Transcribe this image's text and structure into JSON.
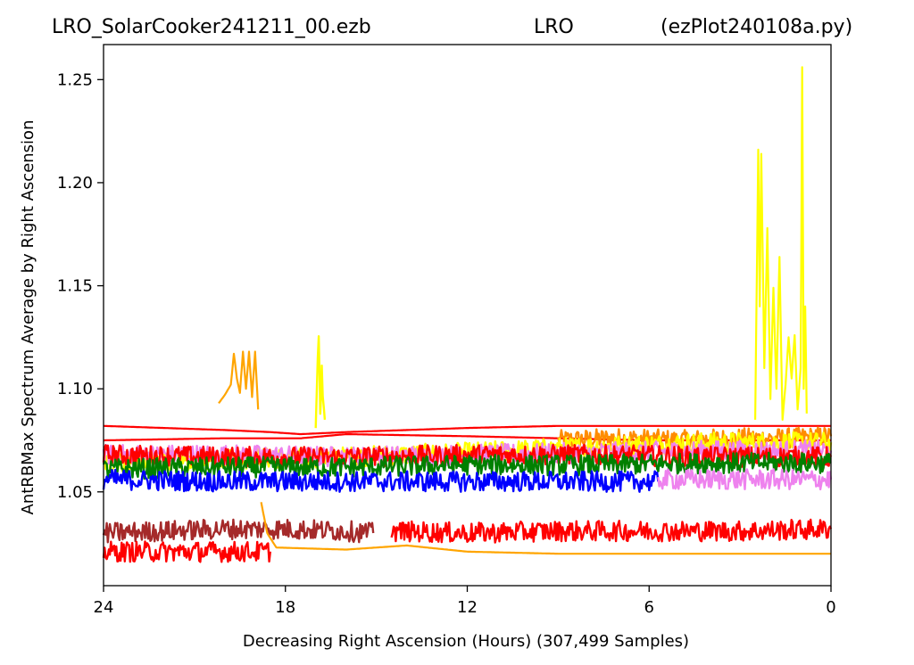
{
  "chart_data": {
    "type": "line",
    "title_left": "LRO_SolarCooker241211_00.ezb",
    "title_center": "LRO",
    "title_right": "(ezPlot240108a.py)",
    "xlabel": "Decreasing Right Ascension (Hours) (307,499 Samples)",
    "ylabel": "AntRBMax Spectrum Average by Right Ascension",
    "xlim": [
      24,
      0
    ],
    "ylim": [
      1.0045,
      1.267
    ],
    "x_ticks": [
      24,
      18,
      12,
      6,
      0
    ],
    "x_tick_labels": [
      "24",
      "18",
      "12",
      "6",
      "0"
    ],
    "y_ticks": [
      1.05,
      1.1,
      1.15,
      1.2,
      1.25
    ],
    "y_tick_labels": [
      "1.05",
      "1.10",
      "1.15",
      "1.20",
      "1.25"
    ],
    "grid": false,
    "series": [
      {
        "color": "#ff0000",
        "segments": [
          {
            "x": [
              24.0,
              20.0,
              18.5,
              17.5,
              16.0,
              14.0,
              12.0,
              9.0,
              6.0,
              3.0,
              0.0
            ],
            "y": [
              1.082,
              1.08,
              1.079,
              1.078,
              1.079,
              1.08,
              1.081,
              1.082,
              1.082,
              1.082,
              1.082
            ]
          }
        ]
      },
      {
        "color": "#ff0000",
        "segments": [
          {
            "x": [
              24.0,
              20.0,
              17.5,
              16.0,
              12.0,
              9.0,
              6.0,
              3.0,
              0.0
            ],
            "y": [
              1.075,
              1.076,
              1.076,
              1.078,
              1.077,
              1.076,
              1.075,
              1.075,
              1.075
            ]
          }
        ]
      },
      {
        "color": "#ff8c00",
        "segments": [
          {
            "x": [
              9.0,
              7.0,
              5.0,
              3.0,
              1.5,
              0.0
            ],
            "y": [
              1.075,
              1.076,
              1.075,
              1.076,
              1.076,
              1.077
            ]
          }
        ]
      },
      {
        "color": "#ffff00",
        "segments": [
          {
            "x": [
              24.0,
              20.0,
              16.0,
              12.0,
              8.0,
              4.0,
              0.0
            ],
            "y": [
              1.064,
              1.066,
              1.067,
              1.069,
              1.072,
              1.074,
              1.074
            ]
          }
        ]
      },
      {
        "color": "#ee82ee",
        "segments": [
          {
            "x": [
              24.0,
              20.0,
              16.0,
              12.0,
              8.0,
              4.0,
              0.0
            ],
            "y": [
              1.068,
              1.068,
              1.067,
              1.068,
              1.069,
              1.07,
              1.07
            ]
          }
        ]
      },
      {
        "color": "#ff0000",
        "segments": [
          {
            "x": [
              24.0,
              20.0,
              16.0,
              12.0,
              8.0,
              4.0,
              0.0
            ],
            "y": [
              1.068,
              1.067,
              1.067,
              1.068,
              1.068,
              1.067,
              1.067
            ]
          }
        ]
      },
      {
        "color": "#008000",
        "segments": [
          {
            "x": [
              24.0,
              20.0,
              16.0,
              12.0,
              8.0,
              4.0,
              0.0
            ],
            "y": [
              1.061,
              1.062,
              1.062,
              1.063,
              1.063,
              1.064,
              1.064
            ]
          }
        ]
      },
      {
        "color": "#0000ff",
        "segments": [
          {
            "x": [
              24.0,
              20.0,
              16.0,
              12.0,
              8.0,
              6.0,
              5.7
            ],
            "y": [
              1.056,
              1.055,
              1.055,
              1.055,
              1.055,
              1.055,
              1.055
            ]
          }
        ]
      },
      {
        "color": "#ee82ee",
        "segments": [
          {
            "x": [
              5.7,
              4.0,
              2.0,
              0.0
            ],
            "y": [
              1.056,
              1.056,
              1.056,
              1.056
            ]
          }
        ]
      },
      {
        "color": "#a52a2a",
        "segments": [
          {
            "x": [
              24.0,
              22.0,
              20.0,
              18.0,
              16.0,
              15.1
            ],
            "y": [
              1.03,
              1.031,
              1.032,
              1.032,
              1.031,
              1.03
            ]
          }
        ]
      },
      {
        "color": "#ff0000",
        "segments": [
          {
            "x": [
              24.0,
              22.0,
              20.0,
              18.5
            ],
            "y": [
              1.021,
              1.021,
              1.021,
              1.021
            ]
          },
          {
            "x": [
              14.5,
              12.0,
              9.0,
              6.0,
              3.0,
              0.0
            ],
            "y": [
              1.031,
              1.03,
              1.031,
              1.031,
              1.031,
              1.032
            ]
          }
        ]
      },
      {
        "color": "#ffa500",
        "segments": [
          {
            "x": [
              18.8,
              18.6,
              18.3,
              16.0,
              14.0,
              12.0,
              9.0,
              6.0,
              3.0,
              0.0
            ],
            "y": [
              1.045,
              1.03,
              1.023,
              1.022,
              1.024,
              1.021,
              1.02,
              1.02,
              1.02,
              1.02
            ]
          }
        ]
      },
      {
        "color": "#ffa500",
        "segments": [
          {
            "x": [
              20.2,
              20.0,
              19.8,
              19.7,
              19.6,
              19.5,
              19.4,
              19.3,
              19.2,
              19.1,
              19.0,
              18.9
            ],
            "y": [
              1.093,
              1.097,
              1.102,
              1.117,
              1.105,
              1.098,
              1.118,
              1.1,
              1.118,
              1.096,
              1.118,
              1.09
            ]
          }
        ]
      },
      {
        "color": "#ffff00",
        "segments": [
          {
            "x": [
              17.0,
              16.9,
              16.85,
              16.8,
              16.7
            ],
            "y": [
              1.085,
              1.126,
              1.09,
              1.108,
              1.085
            ]
          },
          {
            "x": [
              2.5,
              2.4,
              2.35,
              2.3,
              2.2,
              2.1,
              2.0,
              1.9,
              1.8,
              1.7,
              1.6,
              1.5,
              1.4,
              1.3,
              1.2,
              1.1,
              1.0,
              0.95,
              0.9,
              0.85,
              0.8
            ],
            "y": [
              1.085,
              1.216,
              1.14,
              1.214,
              1.11,
              1.178,
              1.095,
              1.149,
              1.1,
              1.164,
              1.085,
              1.102,
              1.125,
              1.105,
              1.126,
              1.09,
              1.11,
              1.256,
              1.1,
              1.14,
              1.088
            ]
          }
        ]
      }
    ]
  }
}
